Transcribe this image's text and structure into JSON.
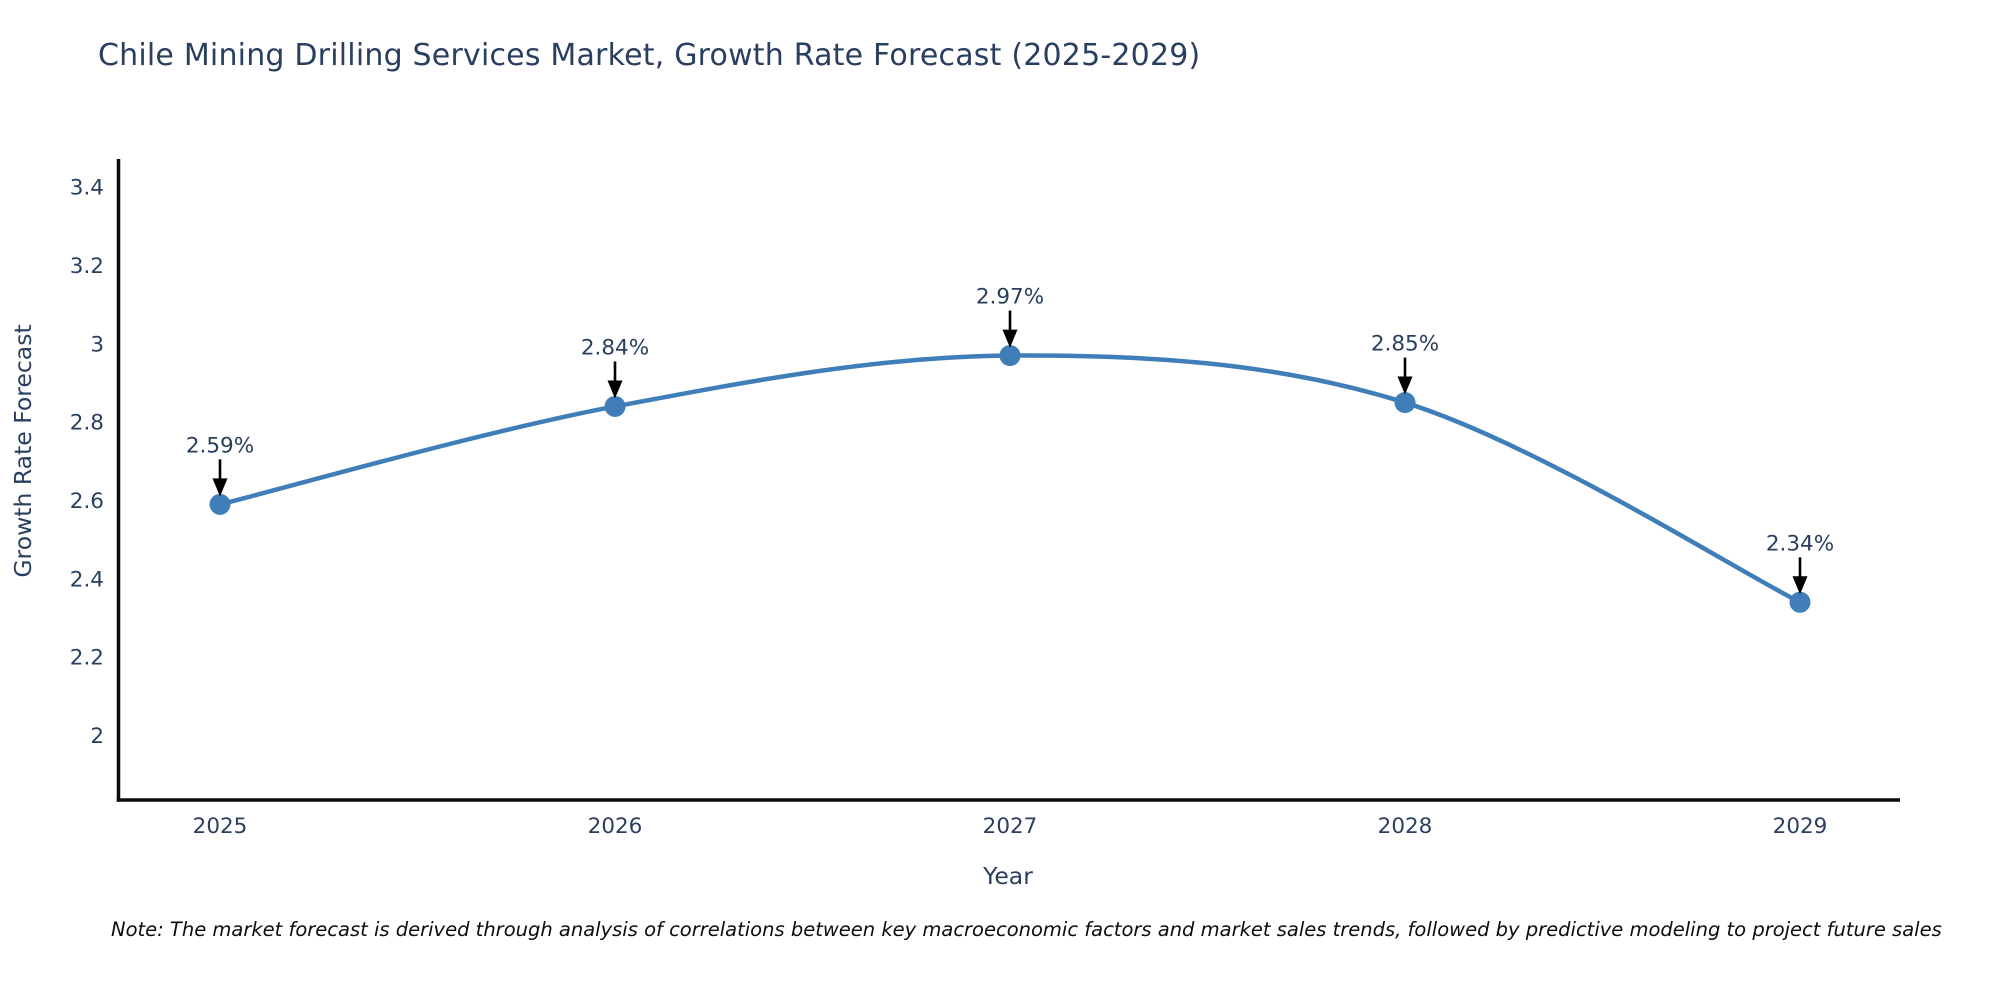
{
  "title": "Chile Mining Drilling Services Market, Growth Rate Forecast (2025-2029)",
  "note": "Note: The market forecast is derived through analysis of correlations between key macroeconomic factors and market sales trends, followed by predictive modeling to project future sales",
  "chart_data": {
    "type": "line",
    "title": "Chile Mining Drilling Services Market, Growth Rate Forecast (2025-2029)",
    "xlabel": "Year",
    "ylabel": "Growth Rate Forecast",
    "x": [
      2025,
      2026,
      2027,
      2028,
      2029
    ],
    "series": [
      {
        "name": "Growth Rate Forecast",
        "values": [
          2.59,
          2.84,
          2.97,
          2.85,
          2.34
        ]
      }
    ],
    "point_labels": [
      "2.59%",
      "2.84%",
      "2.97%",
      "2.85%",
      "2.34%"
    ],
    "yticks": [
      2,
      2.2,
      2.4,
      2.6,
      2.8,
      3,
      3.2,
      3.4
    ],
    "ylim": [
      1.835,
      3.472
    ],
    "line_shape": "spline",
    "grid": false,
    "legend_position": "none",
    "colors": {
      "line": "#3f7eb8",
      "marker": "#3f7eb8",
      "arrow": "#000000",
      "text": "#2a3f5f",
      "axis": "#0b0b0b",
      "note_text": "#0d0d0d",
      "background": "#ffffff"
    }
  }
}
